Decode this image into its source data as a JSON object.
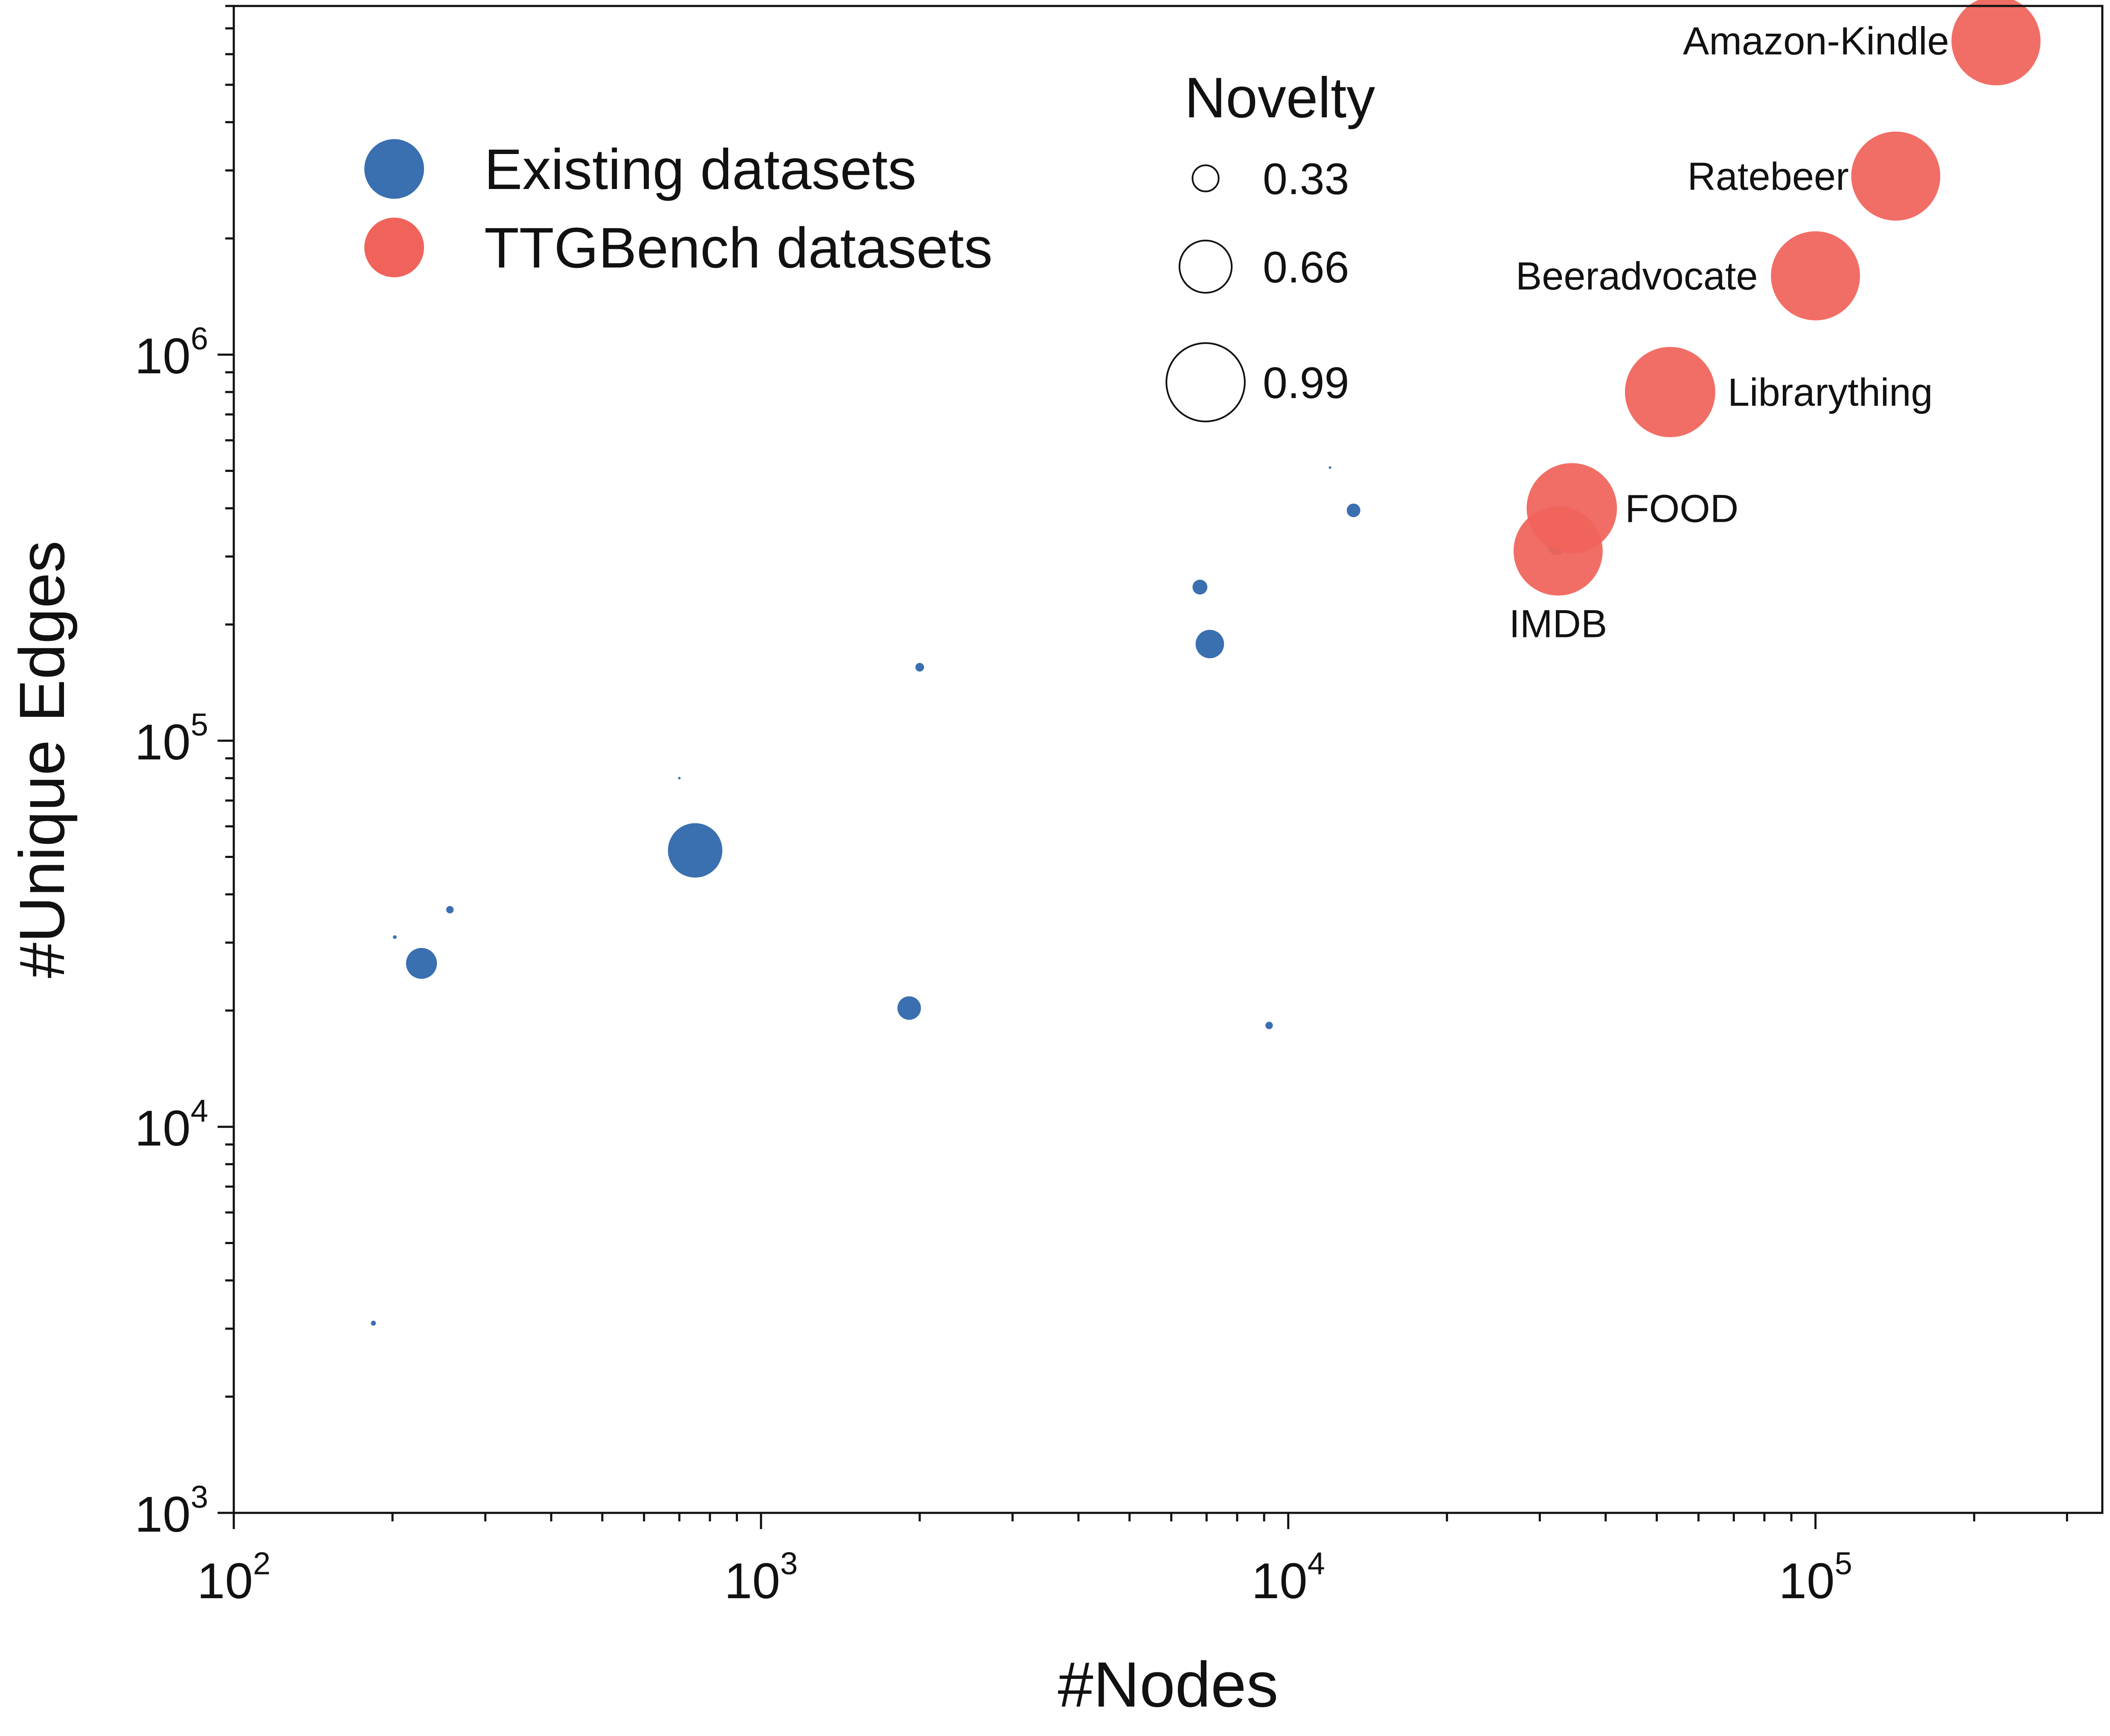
{
  "chart_data": {
    "type": "scatter",
    "xlabel": "#Nodes",
    "ylabel": "#Unique Edges",
    "xscale": "log",
    "yscale": "log",
    "xlim": [
      100,
      350000
    ],
    "ylim": [
      1000,
      8000000
    ],
    "x_ticks": [
      {
        "base": "10",
        "exp": "2",
        "value": 100
      },
      {
        "base": "10",
        "exp": "3",
        "value": 1000
      },
      {
        "base": "10",
        "exp": "4",
        "value": 10000
      },
      {
        "base": "10",
        "exp": "5",
        "value": 100000
      }
    ],
    "y_ticks": [
      {
        "base": "10",
        "exp": "3",
        "value": 1000
      },
      {
        "base": "10",
        "exp": "4",
        "value": 10000
      },
      {
        "base": "10",
        "exp": "5",
        "value": 100000
      },
      {
        "base": "10",
        "exp": "6",
        "value": 1000000
      }
    ],
    "grid": false,
    "legend_placement": "top-left",
    "size_legend": {
      "title": "Novelty",
      "entries": [
        {
          "label": "0.33",
          "value": 0.33
        },
        {
          "label": "0.66",
          "value": 0.66
        },
        {
          "label": "0.99",
          "value": 0.99
        }
      ]
    },
    "series": [
      {
        "name": "Existing datasets",
        "color": "#3a6fb0",
        "points": [
          {
            "x": 184,
            "y": 3100,
            "novelty": 0.04
          },
          {
            "x": 202,
            "y": 31000,
            "novelty": 0.03
          },
          {
            "x": 227,
            "y": 26500,
            "novelty": 0.25
          },
          {
            "x": 257,
            "y": 36500,
            "novelty": 0.06
          },
          {
            "x": 700,
            "y": 80000,
            "novelty": 0.01
          },
          {
            "x": 750,
            "y": 52000,
            "novelty": 0.44
          },
          {
            "x": 1910,
            "y": 20300,
            "novelty": 0.19
          },
          {
            "x": 2000,
            "y": 155000,
            "novelty": 0.07
          },
          {
            "x": 6800,
            "y": 250000,
            "novelty": 0.12
          },
          {
            "x": 7100,
            "y": 178000,
            "novelty": 0.23
          },
          {
            "x": 9200,
            "y": 18300,
            "novelty": 0.06
          },
          {
            "x": 12000,
            "y": 510000,
            "novelty": 0.01
          },
          {
            "x": 13300,
            "y": 395000,
            "novelty": 0.11
          },
          {
            "x": 32300,
            "y": 320000,
            "novelty": 0.15
          }
        ]
      },
      {
        "name": "TTGBench datasets",
        "color": "#f0635a",
        "points": [
          {
            "label": "Amazon-Kindle",
            "x": 220000,
            "y": 6500000,
            "novelty": 0.72
          },
          {
            "label": "Ratebeer",
            "x": 142000,
            "y": 2900000,
            "novelty": 0.72
          },
          {
            "label": "Beeradvocate",
            "x": 100000,
            "y": 1600000,
            "novelty": 0.72
          },
          {
            "label": "Librarything",
            "x": 53000,
            "y": 800000,
            "novelty": 0.73
          },
          {
            "label": "FOOD",
            "x": 34500,
            "y": 400000,
            "novelty": 0.73
          },
          {
            "label": "IMDB",
            "x": 32500,
            "y": 310000,
            "novelty": 0.72
          }
        ]
      }
    ]
  }
}
